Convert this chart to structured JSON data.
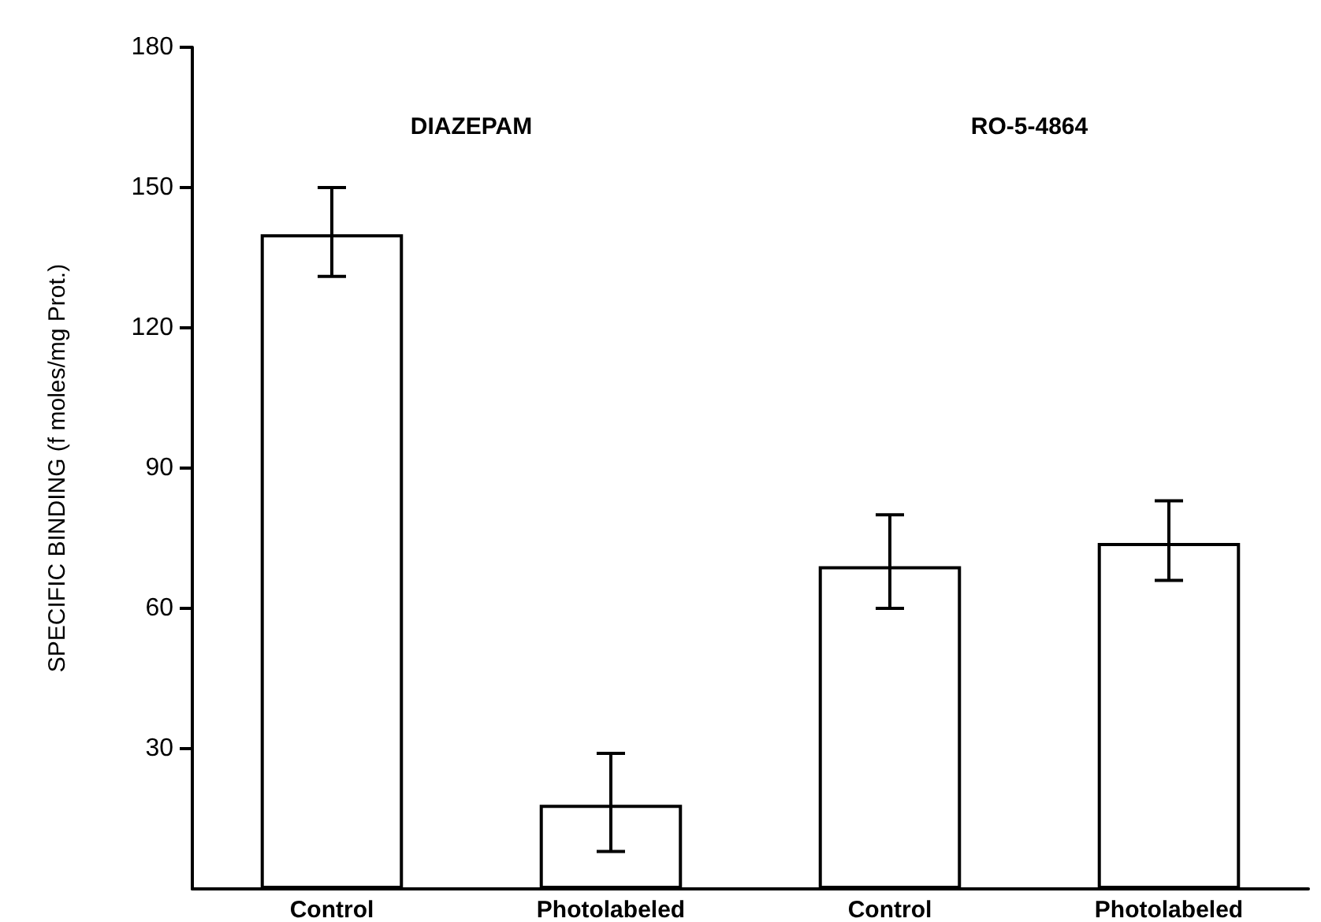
{
  "chart_data": {
    "type": "bar",
    "ylabel": "SPECIFIC BINDING (f moles/mg Prot.)",
    "categories": [
      "Control",
      "Photolabeled",
      "Control",
      "Photolabeled"
    ],
    "values": [
      140,
      18,
      69,
      74
    ],
    "errors": [
      [
        131,
        150
      ],
      [
        8,
        29
      ],
      [
        60,
        80
      ],
      [
        66,
        83
      ]
    ],
    "color": "#ffffff",
    "ylim": [
      0,
      180
    ],
    "yticks": [
      30,
      60,
      90,
      120,
      150,
      180
    ],
    "annotations": [
      "DIAZEPAM",
      "RO-5-4864"
    ],
    "grid": false
  }
}
